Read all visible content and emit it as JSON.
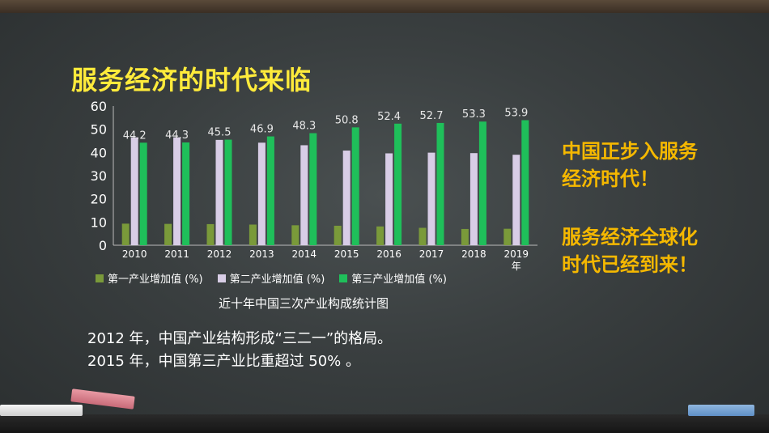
{
  "title": "服务经济的时代来临",
  "side": {
    "line1": "中国正步入服务",
    "line2": "经济时代！",
    "line3": "服务经济全球化",
    "line4": "时代已经到来！"
  },
  "notes": {
    "line1": "2012 年，中国产业结构形成“三二一”的格局。",
    "line2": "2015 年，中国第三产业比重超过 50% 。"
  },
  "colors": {
    "title": "#ffeb3b",
    "side_text": "#f5b800",
    "primary": "#7a9a3a",
    "secondary": "#d8cde6",
    "tertiary": "#1fbf5a"
  },
  "chart_data": {
    "type": "bar",
    "title": "近十年中国三次产业构成统计图",
    "categories": [
      "2010",
      "2011",
      "2012",
      "2013",
      "2014",
      "2015",
      "2016",
      "2017",
      "2018",
      "2019"
    ],
    "last_category_suffix": "年",
    "ylim": [
      0,
      60
    ],
    "yticks": [
      0,
      10,
      20,
      30,
      40,
      50,
      60
    ],
    "series": [
      {
        "name": "第一产业增加值 (%)",
        "values": [
          9.3,
          9.2,
          9.1,
          8.9,
          8.6,
          8.4,
          8.1,
          7.5,
          7.0,
          7.1
        ]
      },
      {
        "name": "第二产业增加值 (%)",
        "values": [
          46.5,
          46.5,
          45.4,
          44.2,
          43.1,
          40.8,
          39.6,
          39.9,
          39.7,
          39.0
        ]
      },
      {
        "name": "第三产业增加值 (%)",
        "values": [
          44.2,
          44.3,
          45.5,
          46.9,
          48.3,
          50.8,
          52.4,
          52.7,
          53.3,
          53.9
        ]
      }
    ],
    "data_labels": [
      "44.2",
      "44.3",
      "45.5",
      "46.9",
      "48.3",
      "50.8",
      "52.4",
      "52.7",
      "53.3",
      "53.9"
    ]
  }
}
